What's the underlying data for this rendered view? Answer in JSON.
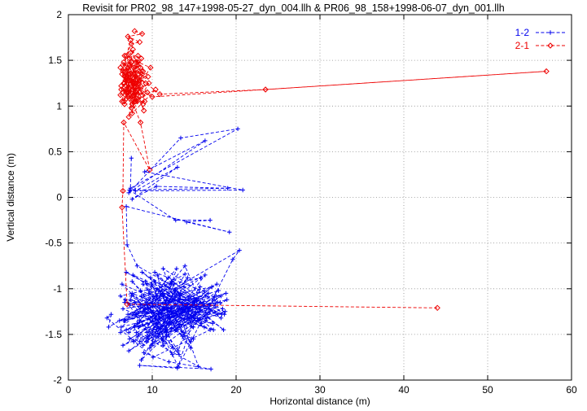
{
  "chart_data": {
    "type": "scatter",
    "title": "Revisit for PR02_98_147+1998-05-27_dyn_004.llh & PR06_98_158+1998-06-07_dyn_001.llh",
    "xlabel": "Horizontal distance (m)",
    "ylabel": "Vertical distance (m)",
    "xlim": [
      0,
      60
    ],
    "ylim": [
      -2,
      2
    ],
    "xticks": [
      0,
      10,
      20,
      30,
      40,
      50,
      60
    ],
    "yticks": [
      -2,
      -1.5,
      -1,
      -0.5,
      0,
      0.5,
      1,
      1.5,
      2
    ],
    "grid": true,
    "legend_position": "top-right",
    "series": [
      {
        "name": "1-2",
        "color": "#0000ee",
        "marker": "plus",
        "line": "dashed",
        "points": [
          [
            7.5,
            0.43
          ],
          [
            7.4,
            0.1
          ],
          [
            20.2,
            0.75
          ],
          [
            13.4,
            0.65
          ],
          [
            7.2,
            0.05
          ],
          [
            16.3,
            0.62
          ],
          [
            9.1,
            0.28
          ],
          [
            20.8,
            0.08
          ],
          [
            8.0,
            0.07
          ],
          [
            13.0,
            0.33
          ],
          [
            7.6,
            -0.02
          ],
          [
            10.5,
            0.12
          ],
          [
            19.0,
            0.1
          ],
          [
            7.3,
            0.08
          ],
          [
            12.8,
            -0.25
          ],
          [
            16.9,
            -0.25
          ],
          [
            14.1,
            -0.27
          ],
          [
            19.2,
            -0.38
          ],
          [
            6.9,
            -0.1
          ],
          [
            7.0,
            -0.52
          ],
          [
            8.2,
            -0.75
          ],
          [
            15.3,
            -1.12
          ],
          [
            6.7,
            -1.35
          ],
          [
            12.4,
            -0.92
          ],
          [
            17.8,
            -1.28
          ],
          [
            9.5,
            -1.55
          ],
          [
            13.9,
            -0.84
          ],
          [
            7.3,
            -1.18
          ],
          [
            16.2,
            -1.42
          ],
          [
            10.8,
            -1.02
          ],
          [
            14.6,
            -1.65
          ],
          [
            8.9,
            -0.95
          ],
          [
            18.4,
            -1.22
          ],
          [
            11.7,
            -1.48
          ],
          [
            6.2,
            -1.08
          ],
          [
            15.8,
            -0.88
          ],
          [
            9.8,
            -1.32
          ],
          [
            13.2,
            -1.72
          ],
          [
            7.9,
            -1.15
          ],
          [
            17.1,
            -0.98
          ],
          [
            12.1,
            -1.38
          ],
          [
            8.5,
            -1.58
          ],
          [
            16.7,
            -1.05
          ],
          [
            10.3,
            -0.82
          ],
          [
            14.3,
            -1.25
          ],
          [
            6.9,
            -1.45
          ],
          [
            18.9,
            -1.12
          ],
          [
            11.3,
            -1.62
          ],
          [
            9.2,
            -0.92
          ],
          [
            15.5,
            -1.35
          ],
          [
            7.6,
            -1.05
          ],
          [
            13.6,
            -1.52
          ],
          [
            17.5,
            -1.18
          ],
          [
            8.1,
            -1.28
          ],
          [
            12.9,
            -0.78
          ],
          [
            10.6,
            -1.42
          ],
          [
            16.4,
            -1.08
          ],
          [
            6.5,
            -1.22
          ],
          [
            14.9,
            -1.55
          ],
          [
            9.6,
            -1.02
          ],
          [
            18.2,
            -1.32
          ],
          [
            11.9,
            -0.88
          ],
          [
            7.2,
            -1.48
          ],
          [
            15.1,
            -1.15
          ],
          [
            13.1,
            -1.68
          ],
          [
            8.7,
            -1.08
          ],
          [
            16.9,
            -1.25
          ],
          [
            10.1,
            -1.45
          ],
          [
            12.6,
            -0.95
          ],
          [
            6.8,
            -1.35
          ],
          [
            17.9,
            -1.02
          ],
          [
            9.3,
            -1.58
          ],
          [
            14.4,
            -1.12
          ],
          [
            7.7,
            -0.85
          ],
          [
            15.9,
            -1.38
          ],
          [
            11.5,
            -1.22
          ],
          [
            8.3,
            -1.52
          ],
          [
            13.8,
            -0.98
          ],
          [
            18.6,
            -1.28
          ],
          [
            10.9,
            -1.08
          ],
          [
            6.3,
            -1.42
          ],
          [
            16.1,
            -1.18
          ],
          [
            9.9,
            -1.62
          ],
          [
            12.3,
            -0.92
          ],
          [
            14.7,
            -1.32
          ],
          [
            7.4,
            -1.12
          ],
          [
            17.3,
            -1.45
          ],
          [
            8.8,
            -0.82
          ],
          [
            15.6,
            -1.25
          ],
          [
            11.1,
            -1.55
          ],
          [
            13.4,
            -1.05
          ],
          [
            6.6,
            -1.35
          ],
          [
            18.1,
            -1.15
          ],
          [
            9.4,
            -1.48
          ],
          [
            12.8,
            -1.02
          ],
          [
            16.6,
            -1.28
          ],
          [
            7.8,
            -1.58
          ],
          [
            14.2,
            -0.88
          ],
          [
            10.4,
            -1.38
          ],
          [
            8.6,
            -1.18
          ],
          [
            17.6,
            -1.08
          ],
          [
            11.8,
            -1.45
          ],
          [
            6.4,
            -0.95
          ],
          [
            15.4,
            -1.32
          ],
          [
            9.7,
            -1.65
          ],
          [
            13.3,
            -1.12
          ],
          [
            7.1,
            -1.28
          ],
          [
            16.3,
            -0.85
          ],
          [
            10.7,
            -1.52
          ],
          [
            12.2,
            -1.22
          ],
          [
            18.8,
            -1.05
          ],
          [
            8.4,
            -1.42
          ],
          [
            14.8,
            -1.15
          ],
          [
            6.1,
            -1.35
          ],
          [
            15.7,
            -0.98
          ],
          [
            11.4,
            -1.58
          ],
          [
            9.1,
            -1.25
          ],
          [
            17.2,
            -1.38
          ],
          [
            7.5,
            -1.08
          ],
          [
            13.7,
            -1.48
          ],
          [
            10.2,
            -0.92
          ],
          [
            16.8,
            -1.18
          ],
          [
            8.9,
            -1.62
          ],
          [
            12.7,
            -1.02
          ],
          [
            14.5,
            -1.35
          ],
          [
            6.7,
            -1.15
          ],
          [
            18.3,
            -1.28
          ],
          [
            9.8,
            -0.88
          ],
          [
            11.6,
            -1.45
          ],
          [
            15.2,
            -1.12
          ],
          [
            7.3,
            -1.55
          ],
          [
            13.5,
            -1.22
          ],
          [
            17.7,
            -0.95
          ],
          [
            8.2,
            -1.38
          ],
          [
            12.5,
            -1.65
          ],
          [
            10.5,
            -1.08
          ],
          [
            16.5,
            -1.32
          ],
          [
            6.9,
            -0.82
          ],
          [
            14.1,
            -1.18
          ],
          [
            9.5,
            -1.52
          ],
          [
            18.7,
            -1.25
          ],
          [
            11.2,
            -1.05
          ],
          [
            7.9,
            -1.42
          ],
          [
            15.8,
            -1.15
          ],
          [
            13.9,
            -0.75
          ],
          [
            8.5,
            -1.35
          ],
          [
            12.4,
            -1.72
          ],
          [
            17.4,
            -1.12
          ],
          [
            10.8,
            -1.28
          ],
          [
            6.2,
            -1.48
          ],
          [
            16.2,
            -1.02
          ],
          [
            9.2,
            -1.22
          ],
          [
            14.6,
            -1.58
          ],
          [
            7.6,
            -0.92
          ],
          [
            11.9,
            -1.38
          ],
          [
            15.3,
            -1.18
          ],
          [
            8.7,
            -1.78
          ],
          [
            13.2,
            -1.08
          ],
          [
            18.5,
            -1.45
          ],
          [
            10.6,
            -0.85
          ],
          [
            12.1,
            -1.32
          ],
          [
            6.5,
            -1.62
          ],
          [
            16.7,
            -1.22
          ],
          [
            9.6,
            -1.05
          ],
          [
            14.9,
            -1.42
          ],
          [
            7.7,
            -1.28
          ],
          [
            17.8,
            -1.15
          ],
          [
            11.3,
            -0.78
          ],
          [
            15.5,
            -1.85
          ],
          [
            8.1,
            -1.48
          ],
          [
            13.6,
            -1.25
          ],
          [
            10.3,
            -1.58
          ],
          [
            6.8,
            -1.12
          ],
          [
            16.4,
            -1.35
          ],
          [
            9.9,
            -0.95
          ],
          [
            12.9,
            -1.45
          ],
          [
            14.3,
            -1.22
          ],
          [
            7.2,
            -1.68
          ],
          [
            18.2,
            -1.08
          ],
          [
            11.7,
            -1.52
          ],
          [
            8.6,
            -1.02
          ],
          [
            15.1,
            -1.28
          ],
          [
            13.1,
            -1.85
          ],
          [
            9.3,
            -1.15
          ],
          [
            16.9,
            -1.45
          ],
          [
            10.1,
            -1.75
          ],
          [
            4.6,
            -1.32
          ],
          [
            5.1,
            -1.28
          ],
          [
            4.8,
            -1.42
          ],
          [
            20.4,
            -0.58
          ],
          [
            19.6,
            -0.68
          ],
          [
            13.0,
            -1.87
          ],
          [
            8.5,
            -1.84
          ],
          [
            17.0,
            -1.88
          ],
          [
            12.0,
            -1.8
          ],
          [
            9.0,
            -1.7
          ]
        ]
      },
      {
        "name": "2-1",
        "color": "#ee0000",
        "marker": "diamond",
        "line": "dashed",
        "points": [
          [
            7.9,
            1.82
          ],
          [
            8.8,
            1.79
          ],
          [
            7.1,
            1.76
          ],
          [
            8.5,
            1.7
          ],
          [
            7.5,
            1.68
          ],
          [
            6.9,
            1.55
          ],
          [
            8.1,
            1.48
          ],
          [
            7.4,
            1.72
          ],
          [
            6.5,
            1.38
          ],
          [
            7.9,
            1.25
          ],
          [
            8.6,
            1.42
          ],
          [
            7.1,
            1.18
          ],
          [
            6.7,
            1.32
          ],
          [
            8.3,
            1.55
          ],
          [
            7.6,
            1.08
          ],
          [
            6.3,
            1.22
          ],
          [
            8.8,
            1.35
          ],
          [
            7.3,
            1.45
          ],
          [
            6.8,
            1.12
          ],
          [
            8.0,
            1.28
          ],
          [
            7.7,
            1.62
          ],
          [
            6.4,
            1.05
          ],
          [
            8.5,
            1.15
          ],
          [
            7.0,
            1.38
          ],
          [
            9.2,
            1.25
          ],
          [
            7.5,
            0.98
          ],
          [
            6.6,
            1.48
          ],
          [
            8.2,
            1.05
          ],
          [
            7.8,
            1.35
          ],
          [
            6.9,
            1.18
          ],
          [
            8.7,
            1.52
          ],
          [
            7.2,
            1.28
          ],
          [
            6.2,
            1.42
          ],
          [
            8.1,
            1.08
          ],
          [
            7.6,
            1.22
          ],
          [
            9.5,
            1.32
          ],
          [
            7.4,
            1.58
          ],
          [
            6.7,
            1.02
          ],
          [
            8.4,
            1.25
          ],
          [
            7.1,
            1.45
          ],
          [
            6.5,
            1.15
          ],
          [
            8.9,
            1.38
          ],
          [
            7.9,
            1.05
          ],
          [
            6.8,
            1.28
          ],
          [
            8.3,
            1.18
          ],
          [
            7.3,
            1.52
          ],
          [
            9.8,
            1.42
          ],
          [
            7.7,
            1.12
          ],
          [
            6.4,
            1.35
          ],
          [
            8.6,
            1.22
          ],
          [
            7.5,
            1.48
          ],
          [
            6.9,
            1.08
          ],
          [
            8.0,
            1.32
          ],
          [
            7.2,
            1.15
          ],
          [
            9.1,
            1.05
          ],
          [
            7.8,
            1.42
          ],
          [
            6.6,
            1.25
          ],
          [
            8.8,
            1.12
          ],
          [
            7.4,
            1.35
          ],
          [
            6.3,
            1.18
          ],
          [
            8.2,
            1.45
          ],
          [
            7.6,
            1.02
          ],
          [
            9.4,
            1.15
          ],
          [
            7.0,
            1.32
          ],
          [
            6.7,
            1.55
          ],
          [
            8.5,
            1.28
          ],
          [
            7.3,
            1.08
          ],
          [
            6.5,
            1.45
          ],
          [
            10.9,
            1.13
          ],
          [
            23.5,
            1.18
          ],
          [
            57.0,
            1.38
          ],
          [
            10.0,
            1.1
          ],
          [
            7.9,
            1.22
          ],
          [
            6.8,
            1.38
          ],
          [
            8.1,
            1.15
          ],
          [
            7.5,
            1.28
          ],
          [
            9.0,
            0.95
          ],
          [
            7.1,
            1.42
          ],
          [
            6.2,
            1.12
          ],
          [
            8.7,
            1.32
          ],
          [
            7.7,
            1.18
          ],
          [
            6.6,
            1.05
          ],
          [
            8.3,
            1.48
          ],
          [
            7.2,
            0.88
          ],
          [
            9.6,
            1.25
          ],
          [
            7.8,
            1.12
          ],
          [
            6.4,
            1.35
          ],
          [
            8.9,
            1.02
          ],
          [
            7.4,
            1.28
          ],
          [
            6.9,
            1.15
          ],
          [
            8.4,
            1.38
          ],
          [
            7.6,
            0.92
          ],
          [
            10.4,
            1.18
          ],
          [
            8.0,
            1.05
          ],
          [
            6.7,
            1.25
          ],
          [
            7.3,
            1.12
          ],
          [
            8.6,
            0.82
          ],
          [
            9.7,
            0.3
          ],
          [
            6.6,
            0.82
          ],
          [
            6.5,
            0.07
          ],
          [
            6.4,
            -0.11
          ],
          [
            7.0,
            -1.17
          ],
          [
            44.0,
            -1.21
          ]
        ]
      }
    ]
  }
}
